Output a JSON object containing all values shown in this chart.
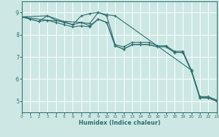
{
  "xlabel": "Humidex (Indice chaleur)",
  "xlim": [
    0,
    23
  ],
  "ylim": [
    4.5,
    9.5
  ],
  "yticks": [
    5,
    6,
    7,
    8,
    9
  ],
  "xticks": [
    0,
    1,
    2,
    3,
    4,
    5,
    6,
    7,
    8,
    9,
    10,
    11,
    12,
    13,
    14,
    15,
    16,
    17,
    18,
    19,
    20,
    21,
    22,
    23
  ],
  "bg_color": "#cde8e4",
  "grid_color": "#ffffff",
  "line_color": "#2e6e6e",
  "lines": [
    {
      "x": [
        0,
        1,
        2,
        3,
        4,
        5,
        6,
        7,
        8,
        9,
        10,
        11,
        12,
        13,
        14,
        15,
        16,
        17,
        18,
        19,
        20,
        21,
        22,
        23
      ],
      "y": [
        8.8,
        8.7,
        8.6,
        8.85,
        8.65,
        8.55,
        8.45,
        8.55,
        8.5,
        9.0,
        8.85,
        7.55,
        7.45,
        7.65,
        7.65,
        7.65,
        7.5,
        7.5,
        7.25,
        7.25,
        6.4,
        5.2,
        5.2,
        5.05
      ]
    },
    {
      "x": [
        0,
        1,
        2,
        3,
        4,
        5,
        6,
        7,
        8,
        9,
        10,
        11,
        12,
        13,
        14,
        15,
        16,
        17,
        18,
        19,
        20,
        21,
        22,
        23
      ],
      "y": [
        8.8,
        8.7,
        8.6,
        8.65,
        8.55,
        8.45,
        8.35,
        8.4,
        8.35,
        8.7,
        8.55,
        7.5,
        7.35,
        7.55,
        7.55,
        7.55,
        7.45,
        7.45,
        7.2,
        7.2,
        6.35,
        5.15,
        5.15,
        5.0
      ]
    },
    {
      "x": [
        0,
        3,
        7,
        8,
        9,
        10,
        11,
        12,
        13,
        14,
        15,
        16,
        17,
        18,
        19,
        20,
        21,
        22,
        23
      ],
      "y": [
        8.8,
        8.65,
        8.55,
        8.4,
        8.7,
        8.55,
        7.5,
        7.35,
        7.55,
        7.55,
        7.55,
        7.45,
        7.45,
        7.2,
        7.2,
        6.35,
        5.15,
        5.15,
        5.0
      ]
    },
    {
      "x": [
        0,
        3,
        6,
        7,
        8,
        9,
        10,
        11,
        20,
        21,
        22,
        23
      ],
      "y": [
        8.8,
        8.85,
        8.45,
        8.85,
        8.95,
        9.0,
        8.9,
        8.85,
        6.4,
        5.2,
        5.2,
        5.05
      ]
    }
  ]
}
